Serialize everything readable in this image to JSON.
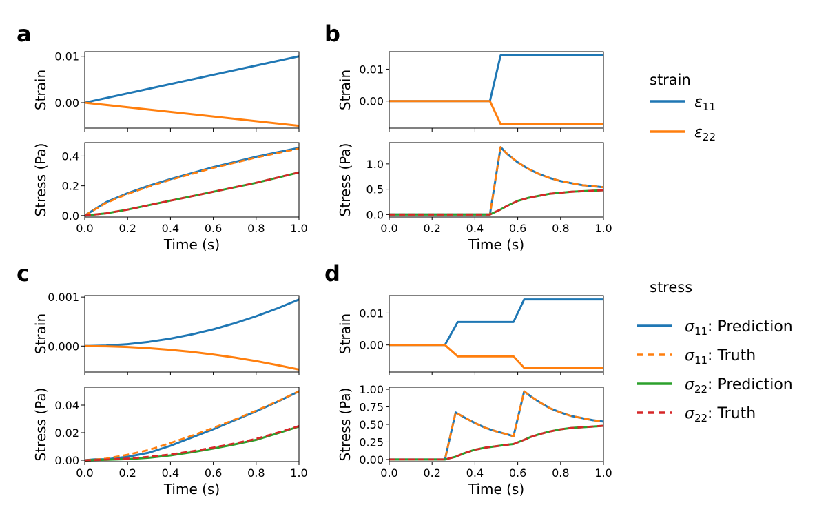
{
  "panels": [
    "a",
    "b",
    "c",
    "d"
  ],
  "legend": {
    "strain_title": "strain",
    "strain_items": [
      {
        "symbol": "ε",
        "sub": "11",
        "label": "",
        "color": "#1f77b4",
        "dash": false
      },
      {
        "symbol": "ε",
        "sub": "22",
        "label": "",
        "color": "#ff7f0e",
        "dash": false
      }
    ],
    "stress_title": "stress",
    "stress_items": [
      {
        "symbol": "σ",
        "sub": "11",
        "label": ": Prediction",
        "color": "#1f77b4",
        "dash": false
      },
      {
        "symbol": "σ",
        "sub": "11",
        "label": ": Truth",
        "color": "#ff7f0e",
        "dash": true
      },
      {
        "symbol": "σ",
        "sub": "22",
        "label": ": Prediction",
        "color": "#2ca02c",
        "dash": false
      },
      {
        "symbol": "σ",
        "sub": "22",
        "label": ": Truth",
        "color": "#d62728",
        "dash": true
      }
    ]
  },
  "chart_data": [
    {
      "type": "line",
      "panel": "a",
      "plot": "strain",
      "ylabel": "Strain",
      "xlim": [
        0,
        1
      ],
      "ylim": [
        -0.0055,
        0.011
      ],
      "yticks": [
        0.0,
        0.01
      ],
      "ytick_labels": [
        "0.00",
        "0.01"
      ],
      "series": [
        {
          "key": "e11",
          "color": "#1f77b4",
          "dash": false,
          "x": [
            0,
            1
          ],
          "y": [
            0,
            0.01
          ]
        },
        {
          "key": "e22",
          "color": "#ff7f0e",
          "dash": false,
          "x": [
            0,
            1
          ],
          "y": [
            0,
            -0.005
          ]
        }
      ]
    },
    {
      "type": "line",
      "panel": "a",
      "plot": "stress",
      "ylabel": "Stress (Pa)",
      "xlabel": "Time (s)",
      "xlim": [
        0,
        1
      ],
      "ylim": [
        -0.01,
        0.49
      ],
      "xticks": [
        0,
        0.2,
        0.4,
        0.6,
        0.8,
        1.0
      ],
      "xtick_labels": [
        "0.0",
        "0.2",
        "0.4",
        "0.6",
        "0.8",
        "1.0"
      ],
      "yticks": [
        0,
        0.2,
        0.4
      ],
      "ytick_labels": [
        "0.0",
        "0.2",
        "0.4"
      ],
      "series": [
        {
          "key": "s11_pred",
          "color": "#1f77b4",
          "dash": false,
          "x": [
            0,
            0.1,
            0.2,
            0.3,
            0.4,
            0.5,
            0.6,
            0.7,
            0.8,
            0.9,
            1.0
          ],
          "y": [
            0,
            0.09,
            0.15,
            0.2,
            0.245,
            0.285,
            0.325,
            0.36,
            0.395,
            0.425,
            0.455
          ]
        },
        {
          "key": "s11_true",
          "color": "#ff7f0e",
          "dash": true,
          "x": [
            0,
            0.1,
            0.2,
            0.3,
            0.4,
            0.5,
            0.6,
            0.7,
            0.8,
            0.9,
            1.0
          ],
          "y": [
            0,
            0.085,
            0.145,
            0.195,
            0.24,
            0.28,
            0.32,
            0.355,
            0.39,
            0.42,
            0.45
          ]
        },
        {
          "key": "s22_pred",
          "color": "#2ca02c",
          "dash": false,
          "x": [
            0,
            0.1,
            0.2,
            0.3,
            0.4,
            0.5,
            0.6,
            0.7,
            0.8,
            0.9,
            1.0
          ],
          "y": [
            0,
            0.015,
            0.04,
            0.07,
            0.1,
            0.13,
            0.16,
            0.19,
            0.22,
            0.255,
            0.29
          ]
        },
        {
          "key": "s22_true",
          "color": "#d62728",
          "dash": true,
          "x": [
            0,
            0.1,
            0.2,
            0.3,
            0.4,
            0.5,
            0.6,
            0.7,
            0.8,
            0.9,
            1.0
          ],
          "y": [
            0,
            0.015,
            0.04,
            0.07,
            0.1,
            0.13,
            0.16,
            0.19,
            0.22,
            0.255,
            0.29
          ]
        }
      ]
    },
    {
      "type": "line",
      "panel": "b",
      "plot": "strain",
      "ylabel": "Strain",
      "xlim": [
        0,
        1
      ],
      "ylim": [
        -0.0085,
        0.0155
      ],
      "yticks": [
        0.0,
        0.01
      ],
      "ytick_labels": [
        "0.00",
        "0.01"
      ],
      "series": [
        {
          "key": "e11",
          "color": "#1f77b4",
          "dash": false,
          "x": [
            0,
            0.47,
            0.52,
            1.0
          ],
          "y": [
            0,
            0,
            0.0143,
            0.0143
          ]
        },
        {
          "key": "e22",
          "color": "#ff7f0e",
          "dash": false,
          "x": [
            0,
            0.47,
            0.52,
            1.0
          ],
          "y": [
            0,
            0,
            -0.0072,
            -0.0072
          ]
        }
      ]
    },
    {
      "type": "line",
      "panel": "b",
      "plot": "stress",
      "ylabel": "Stress (Pa)",
      "xlabel": "Time (s)",
      "xlim": [
        0,
        1
      ],
      "ylim": [
        -0.05,
        1.42
      ],
      "xticks": [
        0,
        0.2,
        0.4,
        0.6,
        0.8,
        1.0
      ],
      "xtick_labels": [
        "0.0",
        "0.2",
        "0.4",
        "0.6",
        "0.8",
        "1.0"
      ],
      "yticks": [
        0,
        0.5,
        1.0
      ],
      "ytick_labels": [
        "0.0",
        "0.5",
        "1.0"
      ],
      "series": [
        {
          "key": "s11_pred",
          "color": "#1f77b4",
          "dash": false,
          "x": [
            0,
            0.47,
            0.52,
            0.55,
            0.6,
            0.65,
            0.7,
            0.75,
            0.8,
            0.85,
            0.9,
            0.95,
            1.0
          ],
          "y": [
            0,
            0,
            1.33,
            1.2,
            1.03,
            0.9,
            0.8,
            0.72,
            0.66,
            0.62,
            0.58,
            0.56,
            0.54
          ]
        },
        {
          "key": "s11_true",
          "color": "#ff7f0e",
          "dash": true,
          "x": [
            0,
            0.47,
            0.52,
            0.55,
            0.6,
            0.65,
            0.7,
            0.75,
            0.8,
            0.85,
            0.9,
            0.95,
            1.0
          ],
          "y": [
            0,
            0,
            1.33,
            1.2,
            1.03,
            0.9,
            0.8,
            0.72,
            0.66,
            0.62,
            0.58,
            0.56,
            0.54
          ]
        },
        {
          "key": "s22_pred",
          "color": "#2ca02c",
          "dash": false,
          "x": [
            0,
            0.47,
            0.52,
            0.55,
            0.6,
            0.65,
            0.7,
            0.75,
            0.8,
            0.85,
            0.9,
            0.95,
            1.0
          ],
          "y": [
            0,
            0,
            0.1,
            0.17,
            0.27,
            0.33,
            0.37,
            0.41,
            0.43,
            0.45,
            0.46,
            0.47,
            0.48
          ]
        },
        {
          "key": "s22_true",
          "color": "#d62728",
          "dash": true,
          "x": [
            0,
            0.47,
            0.52,
            0.55,
            0.6,
            0.65,
            0.7,
            0.75,
            0.8,
            0.85,
            0.9,
            0.95,
            1.0
          ],
          "y": [
            0,
            0,
            0.1,
            0.17,
            0.27,
            0.33,
            0.37,
            0.41,
            0.43,
            0.45,
            0.46,
            0.47,
            0.48
          ]
        }
      ]
    },
    {
      "type": "line",
      "panel": "c",
      "plot": "strain",
      "ylabel": "Strain",
      "xlim": [
        0,
        1
      ],
      "ylim": [
        -0.00053,
        0.00103
      ],
      "yticks": [
        0.0,
        0.001
      ],
      "ytick_labels": [
        "0.000",
        "0.001"
      ],
      "series": [
        {
          "key": "e11",
          "color": "#1f77b4",
          "dash": false,
          "x": [
            0,
            0.1,
            0.2,
            0.3,
            0.4,
            0.5,
            0.6,
            0.7,
            0.8,
            0.9,
            1.0
          ],
          "y": [
            0,
            9.5e-06,
            3.8e-05,
            8.55e-05,
            0.000152,
            0.0002375,
            0.000342,
            0.0004655,
            0.000608,
            0.0007695,
            0.00095
          ]
        },
        {
          "key": "e22",
          "color": "#ff7f0e",
          "dash": false,
          "x": [
            0,
            0.1,
            0.2,
            0.3,
            0.4,
            0.5,
            0.6,
            0.7,
            0.8,
            0.9,
            1.0
          ],
          "y": [
            0,
            -4.8e-06,
            -1.9e-05,
            -4.32e-05,
            -7.68e-05,
            -0.00012,
            -0.0001728,
            -0.0002352,
            -0.0003072,
            -0.0003888,
            -0.00048
          ]
        }
      ]
    },
    {
      "type": "line",
      "panel": "c",
      "plot": "stress",
      "ylabel": "Stress (Pa)",
      "xlabel": "Time (s)",
      "xlim": [
        0,
        1
      ],
      "ylim": [
        -0.001,
        0.053
      ],
      "xticks": [
        0,
        0.2,
        0.4,
        0.6,
        0.8,
        1.0
      ],
      "xtick_labels": [
        "0.0",
        "0.2",
        "0.4",
        "0.6",
        "0.8",
        "1.0"
      ],
      "yticks": [
        0,
        0.02,
        0.04
      ],
      "ytick_labels": [
        "0.00",
        "0.02",
        "0.04"
      ],
      "series": [
        {
          "key": "s11_pred",
          "color": "#1f77b4",
          "dash": false,
          "x": [
            0,
            0.05,
            0.1,
            0.2,
            0.3,
            0.4,
            0.5,
            0.6,
            0.7,
            0.8,
            0.9,
            1.0
          ],
          "y": [
            0,
            0.0007,
            0.0006,
            0.0025,
            0.0055,
            0.0105,
            0.0165,
            0.0225,
            0.029,
            0.0355,
            0.0425,
            0.05
          ]
        },
        {
          "key": "s11_true",
          "color": "#ff7f0e",
          "dash": true,
          "x": [
            0,
            0.05,
            0.1,
            0.2,
            0.3,
            0.4,
            0.5,
            0.6,
            0.7,
            0.8,
            0.9,
            1.0
          ],
          "y": [
            0,
            0.0005,
            0.0012,
            0.004,
            0.0075,
            0.0125,
            0.0178,
            0.0235,
            0.0295,
            0.036,
            0.0428,
            0.05
          ]
        },
        {
          "key": "s22_pred",
          "color": "#2ca02c",
          "dash": false,
          "x": [
            0,
            0.05,
            0.1,
            0.2,
            0.3,
            0.4,
            0.5,
            0.6,
            0.7,
            0.8,
            0.9,
            1.0
          ],
          "y": [
            0,
            0.0002,
            0.0003,
            0.0008,
            0.0018,
            0.0035,
            0.0058,
            0.0085,
            0.0115,
            0.0148,
            0.0195,
            0.0245
          ]
        },
        {
          "key": "s22_true",
          "color": "#d62728",
          "dash": true,
          "x": [
            0,
            0.05,
            0.1,
            0.2,
            0.3,
            0.4,
            0.5,
            0.6,
            0.7,
            0.8,
            0.9,
            1.0
          ],
          "y": [
            0,
            0.0002,
            0.0005,
            0.0012,
            0.0025,
            0.0042,
            0.0065,
            0.0092,
            0.0122,
            0.0155,
            0.02,
            0.0248
          ]
        }
      ]
    },
    {
      "type": "line",
      "panel": "d",
      "plot": "strain",
      "ylabel": "Strain",
      "xlim": [
        0,
        1
      ],
      "ylim": [
        -0.0085,
        0.0155
      ],
      "yticks": [
        0.0,
        0.01
      ],
      "ytick_labels": [
        "0.00",
        "0.01"
      ],
      "series": [
        {
          "key": "e11",
          "color": "#1f77b4",
          "dash": false,
          "x": [
            0,
            0.26,
            0.32,
            0.58,
            0.63,
            1.0
          ],
          "y": [
            0,
            0,
            0.0072,
            0.0072,
            0.0143,
            0.0143
          ]
        },
        {
          "key": "e22",
          "color": "#ff7f0e",
          "dash": false,
          "x": [
            0,
            0.26,
            0.32,
            0.58,
            0.63,
            1.0
          ],
          "y": [
            0,
            0,
            -0.0036,
            -0.0036,
            -0.0072,
            -0.0072
          ]
        }
      ]
    },
    {
      "type": "line",
      "panel": "d",
      "plot": "stress",
      "ylabel": "Stress (Pa)",
      "xlabel": "Time (s)",
      "xlim": [
        0,
        1
      ],
      "ylim": [
        -0.03,
        1.03
      ],
      "xticks": [
        0,
        0.2,
        0.4,
        0.6,
        0.8,
        1.0
      ],
      "xtick_labels": [
        "0.0",
        "0.2",
        "0.4",
        "0.6",
        "0.8",
        "1.0"
      ],
      "yticks": [
        0,
        0.25,
        0.5,
        0.75,
        1.0
      ],
      "ytick_labels": [
        "0.00",
        "0.25",
        "0.50",
        "0.75",
        "1.00"
      ],
      "series": [
        {
          "key": "s11_pred",
          "color": "#1f77b4",
          "dash": false,
          "x": [
            0,
            0.26,
            0.31,
            0.35,
            0.4,
            0.45,
            0.5,
            0.55,
            0.58,
            0.63,
            0.66,
            0.7,
            0.75,
            0.8,
            0.85,
            0.9,
            0.95,
            1.0
          ],
          "y": [
            0,
            0,
            0.67,
            0.6,
            0.52,
            0.45,
            0.4,
            0.36,
            0.33,
            0.97,
            0.9,
            0.82,
            0.73,
            0.67,
            0.62,
            0.59,
            0.56,
            0.54
          ]
        },
        {
          "key": "s11_true",
          "color": "#ff7f0e",
          "dash": true,
          "x": [
            0,
            0.26,
            0.31,
            0.35,
            0.4,
            0.45,
            0.5,
            0.55,
            0.58,
            0.63,
            0.66,
            0.7,
            0.75,
            0.8,
            0.85,
            0.9,
            0.95,
            1.0
          ],
          "y": [
            0,
            0,
            0.67,
            0.6,
            0.52,
            0.45,
            0.4,
            0.36,
            0.33,
            0.97,
            0.9,
            0.82,
            0.73,
            0.67,
            0.62,
            0.59,
            0.56,
            0.54
          ]
        },
        {
          "key": "s22_pred",
          "color": "#2ca02c",
          "dash": false,
          "x": [
            0,
            0.26,
            0.31,
            0.35,
            0.4,
            0.45,
            0.5,
            0.55,
            0.58,
            0.63,
            0.66,
            0.7,
            0.75,
            0.8,
            0.85,
            0.9,
            0.95,
            1.0
          ],
          "y": [
            0,
            0,
            0.04,
            0.09,
            0.14,
            0.17,
            0.19,
            0.21,
            0.22,
            0.28,
            0.32,
            0.36,
            0.4,
            0.43,
            0.45,
            0.46,
            0.47,
            0.48
          ]
        },
        {
          "key": "s22_true",
          "color": "#d62728",
          "dash": true,
          "x": [
            0,
            0.26,
            0.31,
            0.35,
            0.4,
            0.45,
            0.5,
            0.55,
            0.58,
            0.63,
            0.66,
            0.7,
            0.75,
            0.8,
            0.85,
            0.9,
            0.95,
            1.0
          ],
          "y": [
            0,
            0,
            0.04,
            0.09,
            0.14,
            0.17,
            0.19,
            0.21,
            0.22,
            0.28,
            0.32,
            0.36,
            0.4,
            0.43,
            0.45,
            0.46,
            0.47,
            0.48
          ]
        }
      ]
    }
  ]
}
